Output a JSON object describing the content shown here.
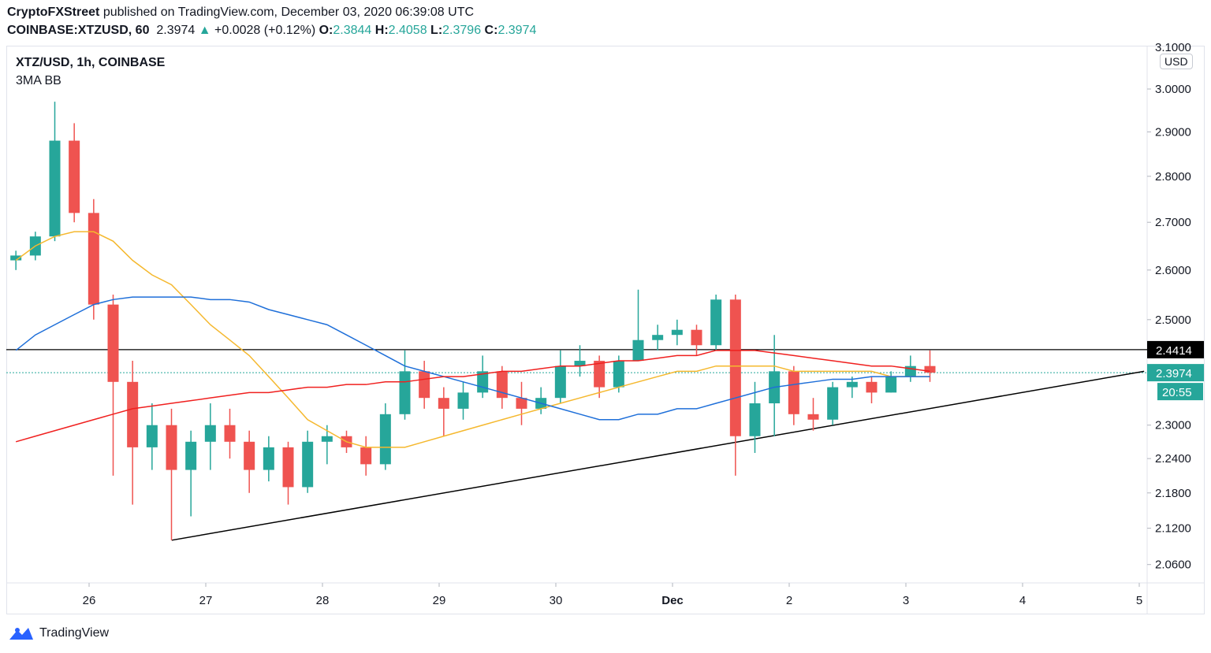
{
  "header": {
    "author": "CryptoFXStreet",
    "published": "published on TradingView.com, December 03, 2020 06:39:08 UTC",
    "symbol": "COINBASE:XTZUSD, 60",
    "last": "2.3974",
    "change": "+0.0028 (+0.12%)",
    "o_label": "O:",
    "o": "2.3844",
    "h_label": "H:",
    "h": "2.4058",
    "l_label": "L:",
    "l": "2.3796",
    "c_label": "C:",
    "c": "2.3974"
  },
  "legend": {
    "title": "XTZ/USD, 1h, COINBASE",
    "indicator": "3MA BB"
  },
  "footer": {
    "brand": "TradingView"
  },
  "colors": {
    "up": "#26a69a",
    "down": "#ef5350",
    "ma_fast": "#f5b82e",
    "ma_mid": "#1e6fd9",
    "ma_slow": "#f0201f"
  },
  "chart_data": {
    "type": "candlestick",
    "y_scale": "log",
    "currency": "USD",
    "ylim": [
      2.02,
      3.1
    ],
    "y_ticks": [
      "3.0000",
      "2.9000",
      "2.8000",
      "2.7000",
      "2.6000",
      "2.5000",
      "2.3000",
      "2.2400",
      "2.1800",
      "2.1200",
      "2.0600"
    ],
    "x_ticks": [
      {
        "label": "26",
        "t": "2020-11-26T00:00"
      },
      {
        "label": "27",
        "t": "2020-11-27T00:00"
      },
      {
        "label": "28",
        "t": "2020-11-28T00:00"
      },
      {
        "label": "29",
        "t": "2020-11-29T00:00"
      },
      {
        "label": "30",
        "t": "2020-11-30T00:00"
      },
      {
        "label": "Dec",
        "t": "2020-12-01T00:00"
      },
      {
        "label": "2",
        "t": "2020-12-02T00:00"
      },
      {
        "label": "3",
        "t": "2020-12-03T00:00"
      },
      {
        "label": "4",
        "t": "2020-12-04T00:00"
      },
      {
        "label": "5",
        "t": "2020-12-05T00:00"
      }
    ],
    "candles": [
      [
        "2020-11-25T07:00",
        2.62,
        2.64,
        2.6,
        2.63
      ],
      [
        "2020-11-25T11:00",
        2.63,
        2.68,
        2.62,
        2.67
      ],
      [
        "2020-11-25T15:00",
        2.67,
        2.97,
        2.66,
        2.88
      ],
      [
        "2020-11-25T19:00",
        2.88,
        2.92,
        2.7,
        2.72
      ],
      [
        "2020-11-25T23:00",
        2.72,
        2.75,
        2.5,
        2.53
      ],
      [
        "2020-11-26T03:00",
        2.53,
        2.55,
        2.21,
        2.38
      ],
      [
        "2020-11-26T07:00",
        2.38,
        2.42,
        2.16,
        2.26
      ],
      [
        "2020-11-26T11:00",
        2.26,
        2.34,
        2.22,
        2.3
      ],
      [
        "2020-11-26T15:00",
        2.3,
        2.33,
        2.1,
        2.22
      ],
      [
        "2020-11-26T19:00",
        2.22,
        2.29,
        2.14,
        2.27
      ],
      [
        "2020-11-26T23:00",
        2.27,
        2.34,
        2.22,
        2.3
      ],
      [
        "2020-11-27T03:00",
        2.3,
        2.33,
        2.24,
        2.27
      ],
      [
        "2020-11-27T07:00",
        2.27,
        2.29,
        2.18,
        2.22
      ],
      [
        "2020-11-27T11:00",
        2.22,
        2.28,
        2.2,
        2.26
      ],
      [
        "2020-11-27T15:00",
        2.26,
        2.27,
        2.16,
        2.19
      ],
      [
        "2020-11-27T19:00",
        2.19,
        2.29,
        2.18,
        2.27
      ],
      [
        "2020-11-27T23:00",
        2.27,
        2.3,
        2.23,
        2.28
      ],
      [
        "2020-11-28T03:00",
        2.28,
        2.29,
        2.25,
        2.26
      ],
      [
        "2020-11-28T07:00",
        2.26,
        2.28,
        2.21,
        2.23
      ],
      [
        "2020-11-28T11:00",
        2.23,
        2.34,
        2.22,
        2.32
      ],
      [
        "2020-11-28T15:00",
        2.32,
        2.44,
        2.31,
        2.4
      ],
      [
        "2020-11-28T19:00",
        2.4,
        2.42,
        2.33,
        2.35
      ],
      [
        "2020-11-28T23:00",
        2.35,
        2.37,
        2.28,
        2.33
      ],
      [
        "2020-11-29T03:00",
        2.33,
        2.38,
        2.31,
        2.36
      ],
      [
        "2020-11-29T07:00",
        2.36,
        2.43,
        2.35,
        2.4
      ],
      [
        "2020-11-29T11:00",
        2.4,
        2.41,
        2.33,
        2.35
      ],
      [
        "2020-11-29T15:00",
        2.35,
        2.38,
        2.3,
        2.33
      ],
      [
        "2020-11-29T19:00",
        2.33,
        2.37,
        2.32,
        2.35
      ],
      [
        "2020-11-29T23:00",
        2.35,
        2.44,
        2.34,
        2.41
      ],
      [
        "2020-11-30T03:00",
        2.41,
        2.45,
        2.39,
        2.42
      ],
      [
        "2020-11-30T07:00",
        2.42,
        2.43,
        2.35,
        2.37
      ],
      [
        "2020-11-30T11:00",
        2.37,
        2.43,
        2.36,
        2.42
      ],
      [
        "2020-11-30T15:00",
        2.42,
        2.56,
        2.42,
        2.46
      ],
      [
        "2020-11-30T19:00",
        2.46,
        2.49,
        2.44,
        2.47
      ],
      [
        "2020-11-30T23:00",
        2.47,
        2.5,
        2.45,
        2.48
      ],
      [
        "2020-12-01T03:00",
        2.48,
        2.49,
        2.43,
        2.45
      ],
      [
        "2020-12-01T07:00",
        2.45,
        2.55,
        2.44,
        2.54
      ],
      [
        "2020-12-01T11:00",
        2.54,
        2.55,
        2.21,
        2.28
      ],
      [
        "2020-12-01T15:00",
        2.28,
        2.38,
        2.25,
        2.34
      ],
      [
        "2020-12-01T19:00",
        2.34,
        2.47,
        2.28,
        2.4
      ],
      [
        "2020-12-01T23:00",
        2.4,
        2.41,
        2.3,
        2.32
      ],
      [
        "2020-12-02T03:00",
        2.32,
        2.35,
        2.29,
        2.31
      ],
      [
        "2020-12-02T07:00",
        2.31,
        2.38,
        2.3,
        2.37
      ],
      [
        "2020-12-02T11:00",
        2.37,
        2.39,
        2.35,
        2.38
      ],
      [
        "2020-12-02T15:00",
        2.38,
        2.39,
        2.34,
        2.36
      ],
      [
        "2020-12-02T19:00",
        2.36,
        2.4,
        2.36,
        2.39
      ],
      [
        "2020-12-02T23:00",
        2.39,
        2.43,
        2.38,
        2.41
      ],
      [
        "2020-12-03T03:00",
        2.41,
        2.44,
        2.38,
        2.3974
      ]
    ],
    "ma_fast": [
      2.62,
      2.65,
      2.67,
      2.68,
      2.68,
      2.66,
      2.62,
      2.59,
      2.57,
      2.53,
      2.49,
      2.46,
      2.43,
      2.39,
      2.35,
      2.31,
      2.29,
      2.27,
      2.26,
      2.26,
      2.26,
      2.27,
      2.28,
      2.29,
      2.3,
      2.31,
      2.32,
      2.33,
      2.34,
      2.35,
      2.36,
      2.37,
      2.38,
      2.39,
      2.4,
      2.4,
      2.41,
      2.41,
      2.41,
      2.41,
      2.4,
      2.4,
      2.4,
      2.4,
      2.4,
      2.39,
      2.39,
      2.39
    ],
    "ma_mid": [
      2.44,
      2.47,
      2.49,
      2.51,
      2.53,
      2.54,
      2.545,
      2.545,
      2.545,
      2.545,
      2.54,
      2.54,
      2.535,
      2.52,
      2.51,
      2.5,
      2.49,
      2.47,
      2.45,
      2.43,
      2.41,
      2.4,
      2.39,
      2.38,
      2.37,
      2.36,
      2.35,
      2.34,
      2.33,
      2.32,
      2.31,
      2.31,
      2.32,
      2.32,
      2.33,
      2.33,
      2.34,
      2.35,
      2.36,
      2.37,
      2.375,
      2.38,
      2.385,
      2.385,
      2.39,
      2.39,
      2.39,
      2.39
    ],
    "ma_slow": [
      2.27,
      2.28,
      2.29,
      2.3,
      2.31,
      2.32,
      2.33,
      2.335,
      2.34,
      2.345,
      2.35,
      2.355,
      2.36,
      2.36,
      2.365,
      2.37,
      2.37,
      2.375,
      2.375,
      2.38,
      2.38,
      2.385,
      2.39,
      2.39,
      2.395,
      2.4,
      2.4,
      2.405,
      2.41,
      2.41,
      2.415,
      2.42,
      2.42,
      2.425,
      2.43,
      2.43,
      2.44,
      2.44,
      2.44,
      2.435,
      2.43,
      2.425,
      2.42,
      2.415,
      2.41,
      2.41,
      2.405,
      2.4
    ],
    "horizontal_line": {
      "price": 2.4414,
      "label": "2.4414"
    },
    "trendline": {
      "from": [
        "2020-11-26T17:00",
        2.1
      ],
      "to": [
        "2020-12-05T01:00",
        2.4
      ]
    },
    "last_price": {
      "label": "2.3974",
      "price": 2.3974,
      "countdown": "20:55"
    }
  }
}
